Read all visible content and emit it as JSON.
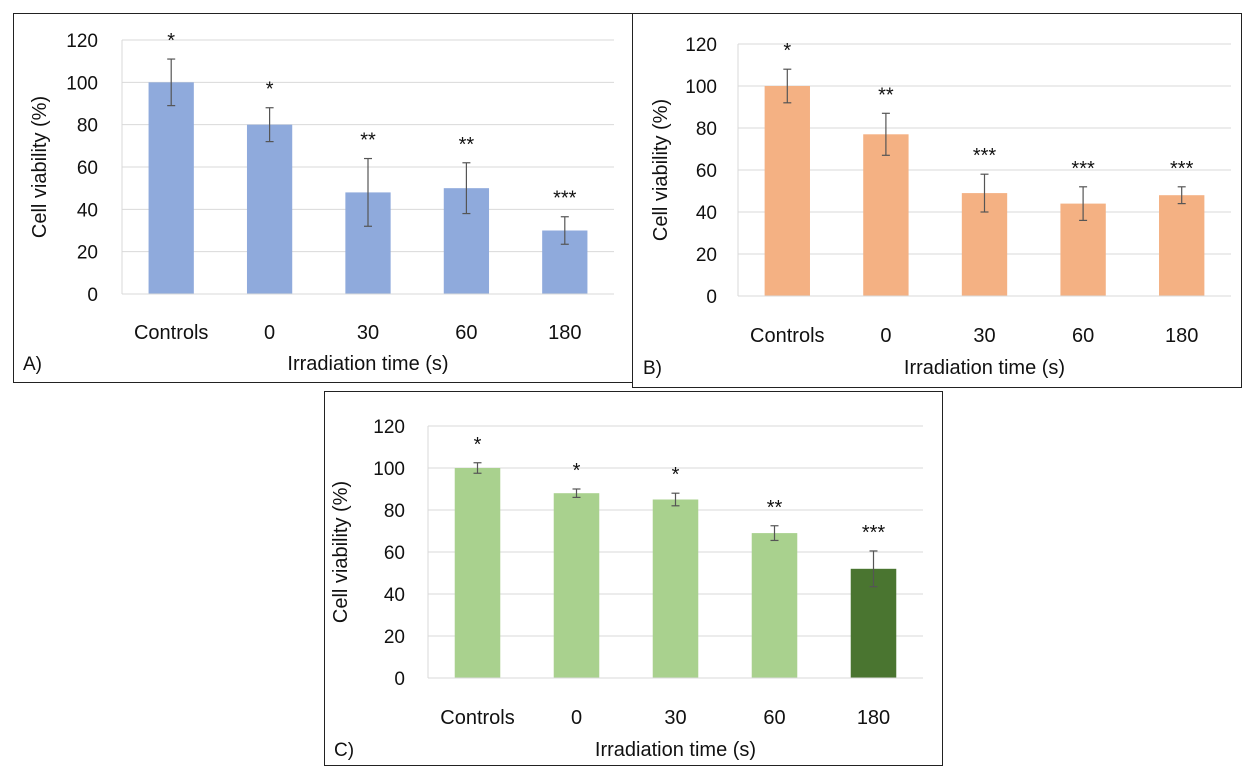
{
  "charts": [
    {
      "panel_label": "A)",
      "xlabel": "Irradiation time (s)",
      "ylabel": "Cell viability (%)",
      "bar_color": "#8faadc",
      "bar_colors": [
        "#8faadc",
        "#8faadc",
        "#8faadc",
        "#8faadc",
        "#8faadc"
      ],
      "categories": [
        "Controls",
        "0",
        "30",
        "60",
        "180"
      ],
      "values": [
        100,
        80,
        48,
        50,
        30
      ],
      "errors": [
        11,
        8,
        16,
        12,
        6.5
      ],
      "significance": [
        "*",
        "*",
        "**",
        "**",
        "***"
      ],
      "yticks": [
        "0",
        "20",
        "40",
        "60",
        "80",
        "100",
        "120"
      ]
    },
    {
      "panel_label": "B)",
      "xlabel": "Irradiation time (s)",
      "ylabel": "Cell viability (%)",
      "bar_color": "#f4b183",
      "bar_colors": [
        "#f4b183",
        "#f4b183",
        "#f4b183",
        "#f4b183",
        "#f4b183"
      ],
      "categories": [
        "Controls",
        "0",
        "30",
        "60",
        "180"
      ],
      "values": [
        100,
        77,
        49,
        44,
        48
      ],
      "errors": [
        8,
        10,
        9,
        8,
        4
      ],
      "significance": [
        "*",
        "**",
        "***",
        "***",
        "***"
      ],
      "yticks": [
        "0",
        "20",
        "40",
        "60",
        "80",
        "100",
        "120"
      ]
    },
    {
      "panel_label": "C)",
      "xlabel": "Irradiation time (s)",
      "ylabel": "Cell viability (%)",
      "bar_color": "#a9d18e",
      "bar_colors": [
        "#a9d18e",
        "#a9d18e",
        "#a9d18e",
        "#a9d18e",
        "#4a7530"
      ],
      "categories": [
        "Controls",
        "0",
        "30",
        "60",
        "180"
      ],
      "values": [
        100,
        88,
        85,
        69,
        52
      ],
      "errors": [
        2.5,
        2,
        3,
        3.5,
        8.5
      ],
      "significance": [
        "*",
        "*",
        "*",
        "**",
        "***"
      ],
      "yticks": [
        "0",
        "20",
        "40",
        "60",
        "80",
        "100",
        "120"
      ]
    }
  ],
  "chart_data": [
    {
      "type": "bar",
      "panel": "A)",
      "categories": [
        "Controls",
        "0",
        "30",
        "60",
        "180"
      ],
      "values": [
        100,
        80,
        48,
        50,
        30
      ],
      "error_bars": [
        11,
        8,
        16,
        12,
        6.5
      ],
      "annotations": [
        "*",
        "*",
        "**",
        "**",
        "***"
      ],
      "xlabel": "Irradiation time (s)",
      "ylabel": "Cell viability (%)",
      "ylim": [
        0,
        120
      ],
      "grid": "horizontal",
      "legend": "none"
    },
    {
      "type": "bar",
      "panel": "B)",
      "categories": [
        "Controls",
        "0",
        "30",
        "60",
        "180"
      ],
      "values": [
        100,
        77,
        49,
        44,
        48
      ],
      "error_bars": [
        8,
        10,
        9,
        8,
        4
      ],
      "annotations": [
        "*",
        "**",
        "***",
        "***",
        "***"
      ],
      "xlabel": "Irradiation time (s)",
      "ylabel": "Cell viability (%)",
      "ylim": [
        0,
        120
      ],
      "grid": "horizontal",
      "legend": "none"
    },
    {
      "type": "bar",
      "panel": "C)",
      "categories": [
        "Controls",
        "0",
        "30",
        "60",
        "180"
      ],
      "values": [
        100,
        88,
        85,
        69,
        52
      ],
      "error_bars": [
        2.5,
        2,
        3,
        3.5,
        8.5
      ],
      "annotations": [
        "*",
        "*",
        "*",
        "**",
        "***"
      ],
      "xlabel": "Irradiation time (s)",
      "ylabel": "Cell viability (%)",
      "ylim": [
        0,
        120
      ],
      "grid": "horizontal",
      "legend": "none"
    }
  ]
}
